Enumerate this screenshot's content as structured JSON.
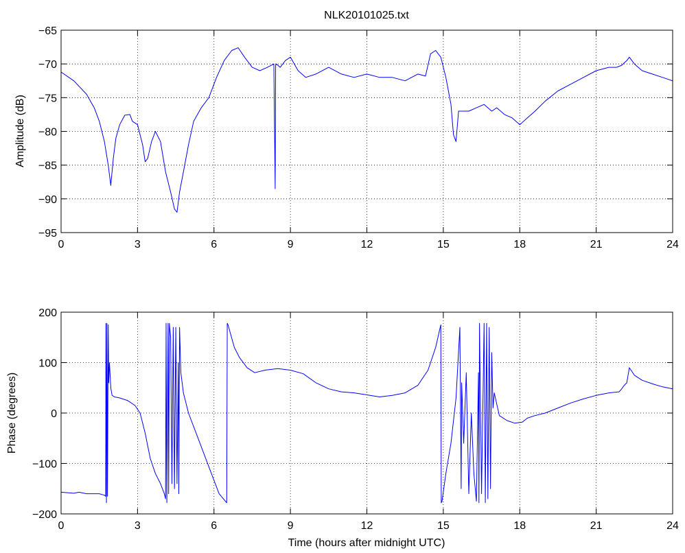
{
  "figure": {
    "background": "#ffffff",
    "line_color": "#0000ff",
    "grid": true
  },
  "chart_data": [
    {
      "type": "line",
      "title": "NLK20101025.txt",
      "xlabel": "",
      "ylabel": "Amplitude (dB)",
      "xlim": [
        0,
        24
      ],
      "ylim": [
        -95,
        -65
      ],
      "xticks": [
        0,
        3,
        6,
        9,
        12,
        15,
        18,
        21,
        24
      ],
      "xtick_labels": [
        "0",
        "3",
        "6",
        "9",
        "12",
        "15",
        "18",
        "21",
        "24"
      ],
      "yticks": [
        -65,
        -70,
        -75,
        -80,
        -85,
        -90,
        -95
      ],
      "ytick_labels": [
        "−65",
        "−70",
        "−75",
        "−80",
        "−85",
        "−90",
        "−95"
      ],
      "series": [
        {
          "color": "#0000ff",
          "x": [
            0,
            0.5,
            1.0,
            1.3,
            1.5,
            1.7,
            1.85,
            1.95,
            2.05,
            2.15,
            2.3,
            2.5,
            2.7,
            2.8,
            3.0,
            3.2,
            3.3,
            3.4,
            3.55,
            3.7,
            3.9,
            4.1,
            4.3,
            4.45,
            4.55,
            4.65,
            4.8,
            5.0,
            5.2,
            5.5,
            5.8,
            6.1,
            6.4,
            6.7,
            6.95,
            7.2,
            7.5,
            7.8,
            8.1,
            8.35,
            8.4,
            8.42,
            8.45,
            8.6,
            8.8,
            9.0,
            9.3,
            9.6,
            10.0,
            10.5,
            11.0,
            11.5,
            12.0,
            12.5,
            13.0,
            13.5,
            14.0,
            14.3,
            14.5,
            14.7,
            14.9,
            15.1,
            15.3,
            15.4,
            15.5,
            15.6,
            15.8,
            16.0,
            16.3,
            16.6,
            16.9,
            17.1,
            17.4,
            17.7,
            18.0,
            18.3,
            18.6,
            19.0,
            19.5,
            20.0,
            20.5,
            21.0,
            21.5,
            21.8,
            22.0,
            22.2,
            22.3,
            22.5,
            22.8,
            23.2,
            23.6,
            24.0
          ],
          "y": [
            -71.2,
            -72.5,
            -74.5,
            -76.5,
            -78.5,
            -81.5,
            -85.0,
            -88.0,
            -84.0,
            -81.0,
            -79.0,
            -77.6,
            -77.5,
            -78.5,
            -79.0,
            -82.0,
            -84.5,
            -84.0,
            -81.5,
            -80.0,
            -81.5,
            -86.0,
            -89.0,
            -91.5,
            -92.0,
            -89.0,
            -86.0,
            -82.0,
            -78.5,
            -76.5,
            -75.0,
            -72.0,
            -69.5,
            -68.0,
            -67.6,
            -69.0,
            -70.5,
            -71.0,
            -70.5,
            -70.0,
            -88.5,
            -70.2,
            -70.0,
            -70.5,
            -69.5,
            -69.0,
            -71.0,
            -72.0,
            -71.5,
            -70.5,
            -71.5,
            -72.0,
            -71.5,
            -72.0,
            -72.0,
            -72.5,
            -71.5,
            -71.8,
            -68.5,
            -68.0,
            -69.0,
            -72.0,
            -76.0,
            -80.5,
            -81.5,
            -77.0,
            -77.0,
            -77.0,
            -76.5,
            -76.0,
            -77.0,
            -76.5,
            -77.5,
            -78.0,
            -79.0,
            -78.0,
            -77.0,
            -75.5,
            -74.0,
            -73.0,
            -72.0,
            -71.0,
            -70.5,
            -70.5,
            -70.2,
            -69.5,
            -69.0,
            -70.0,
            -71.0,
            -71.5,
            -72.0,
            -72.5
          ]
        }
      ]
    },
    {
      "type": "line",
      "title": "",
      "xlabel": "Time (hours after midnight UTC)",
      "ylabel": "Phase (degrees)",
      "xlim": [
        0,
        24
      ],
      "ylim": [
        -200,
        200
      ],
      "xticks": [
        0,
        3,
        6,
        9,
        12,
        15,
        18,
        21,
        24
      ],
      "xtick_labels": [
        "0",
        "3",
        "6",
        "9",
        "12",
        "15",
        "18",
        "21",
        "24"
      ],
      "yticks": [
        200,
        100,
        0,
        -100,
        -200
      ],
      "ytick_labels": [
        "200",
        "100",
        "0",
        "−100",
        "−200"
      ],
      "series": [
        {
          "color": "#0000ff",
          "x": [
            0,
            0.5,
            0.7,
            1.0,
            1.5,
            1.7,
            1.75,
            1.76,
            1.78,
            1.8,
            1.82,
            1.85,
            1.87,
            1.9,
            1.95,
            2.0,
            2.1,
            2.3,
            2.6,
            2.9,
            3.1,
            3.3,
            3.5,
            3.7,
            3.9,
            4.05,
            4.1,
            4.12,
            4.15,
            4.2,
            4.22,
            4.25,
            4.3,
            4.35,
            4.4,
            4.45,
            4.5,
            4.55,
            4.6,
            4.62,
            4.65,
            4.7,
            4.8,
            5.0,
            5.3,
            5.6,
            5.9,
            6.2,
            6.5,
            6.52,
            6.55,
            6.8,
            7.0,
            7.3,
            7.6,
            8.0,
            8.5,
            9.0,
            9.5,
            10.0,
            10.5,
            11.0,
            11.5,
            12.0,
            12.5,
            13.0,
            13.5,
            14.0,
            14.4,
            14.7,
            14.9,
            14.92,
            14.95,
            15.1,
            15.3,
            15.5,
            15.65,
            15.7,
            15.72,
            15.8,
            15.9,
            16.0,
            16.1,
            16.2,
            16.3,
            16.38,
            16.4,
            16.42,
            16.5,
            16.6,
            16.65,
            16.7,
            16.75,
            16.8,
            16.85,
            16.9,
            16.95,
            17.0,
            17.2,
            17.5,
            17.8,
            18.1,
            18.3,
            18.6,
            19.0,
            19.5,
            20.0,
            20.5,
            21.0,
            21.5,
            21.9,
            22.0,
            22.1,
            22.2,
            22.3,
            22.5,
            22.8,
            23.2,
            23.6,
            24.0
          ],
          "y": [
            -157,
            -159,
            -157,
            -160,
            -160,
            -163,
            -165,
            178,
            -178,
            178,
            -165,
            175,
            60,
            100,
            50,
            35,
            32,
            30,
            25,
            15,
            0,
            -40,
            -90,
            -120,
            -140,
            -160,
            -170,
            178,
            -178,
            178,
            -160,
            178,
            150,
            -140,
            170,
            -150,
            170,
            -140,
            100,
            -160,
            170,
            80,
            40,
            0,
            -40,
            -80,
            -120,
            -160,
            -178,
            178,
            175,
            130,
            110,
            90,
            80,
            85,
            88,
            85,
            78,
            60,
            48,
            42,
            40,
            36,
            32,
            35,
            40,
            55,
            85,
            130,
            175,
            -178,
            -175,
            -120,
            -60,
            30,
            170,
            -150,
            60,
            -60,
            80,
            -160,
            0,
            -120,
            -175,
            80,
            -178,
            178,
            -160,
            178,
            -178,
            178,
            -170,
            170,
            -150,
            120,
            10,
            40,
            -5,
            -15,
            -20,
            -18,
            -10,
            -5,
            0,
            10,
            20,
            28,
            35,
            40,
            42,
            48,
            55,
            60,
            90,
            75,
            65,
            58,
            52,
            48
          ]
        }
      ]
    }
  ]
}
